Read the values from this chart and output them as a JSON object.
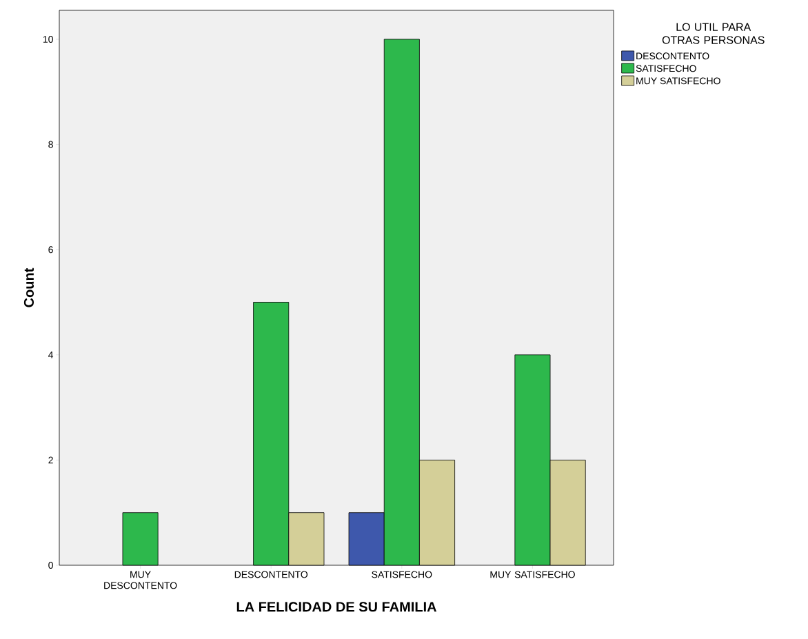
{
  "chart_data": {
    "type": "bar",
    "xlabel": "LA FELICIDAD DE SU FAMILIA",
    "ylabel": "Count",
    "legend_title": "LO UTIL PARA OTRAS PERSONAS",
    "categories": [
      "MUY DESCONTENTO",
      "DESCONTENTO",
      "SATISFECHO",
      "MUY SATISFECHO"
    ],
    "series": [
      {
        "name": "DESCONTENTO",
        "color": "#3e58ac",
        "values": [
          null,
          null,
          1,
          null
        ]
      },
      {
        "name": "SATISFECHO",
        "color": "#2db84c",
        "values": [
          1,
          5,
          10,
          4
        ]
      },
      {
        "name": "MUY SATISFECHO",
        "color": "#d4cf98",
        "values": [
          null,
          1,
          2,
          2
        ]
      }
    ],
    "ylim": [
      0,
      10.55
    ],
    "yticks": [
      0,
      2,
      4,
      6,
      8,
      10
    ],
    "grid": false,
    "legend": "top right"
  }
}
